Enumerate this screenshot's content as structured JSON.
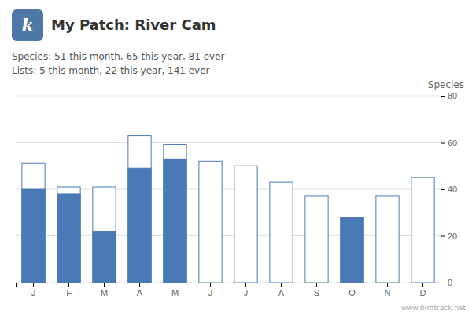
{
  "chart_data": {
    "type": "bar",
    "title": "My Patch: River Cam",
    "subtitle": [
      "Species: 51 this month, 65 this year, 81 ever",
      "Lists: 5 this month, 22 this year, 141 ever"
    ],
    "y_label": "Species",
    "annotations": [
      "k",
      "www.birdtrack.net"
    ],
    "categories": [
      "J",
      "F",
      "M",
      "A",
      "M",
      "J",
      "J",
      "A",
      "S",
      "O",
      "N",
      "D"
    ],
    "series": [
      {
        "color": "#4a7ab5",
        "values": [
          51,
          41,
          41,
          63,
          59,
          52,
          50,
          43,
          37,
          28,
          37,
          45
        ]
      },
      {
        "color": "#4a7ab5",
        "values": [
          40,
          38,
          22,
          49,
          53,
          0,
          0,
          0,
          0,
          28,
          0,
          0
        ]
      }
    ],
    "stacked": false,
    "ylim": [
      0,
      80
    ],
    "yticks": [
      0,
      20,
      40,
      60,
      80
    ],
    "grid": true
  }
}
